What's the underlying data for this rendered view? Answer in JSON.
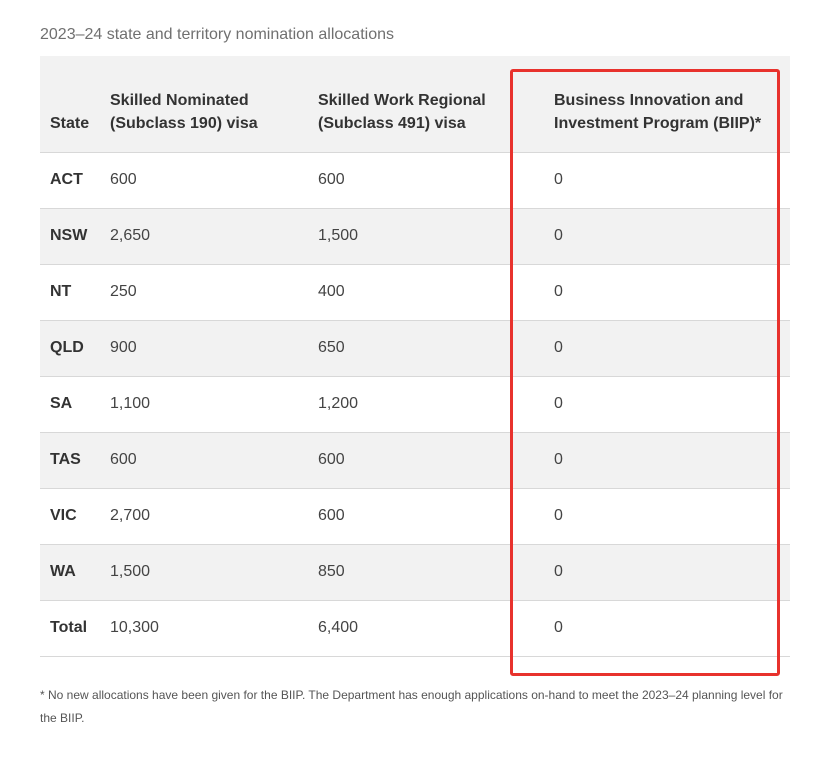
{
  "caption": "2023–24 state and territory nomination allocations",
  "table": {
    "headers": {
      "state": "State",
      "skilled_nominated": "Skilled Nominated (Subclass 190) visa",
      "skilled_work_regional": "Skilled Work Regional (Subclass 491) visa",
      "biip": "Business Innovation and Investment Program (BIIP)*"
    },
    "rows": [
      {
        "state": "ACT",
        "skilled_nominated": "600",
        "skilled_work_regional": "600",
        "biip": "0"
      },
      {
        "state": "NSW",
        "skilled_nominated": "2,650",
        "skilled_work_regional": "1,500",
        "biip": "0"
      },
      {
        "state": "NT",
        "skilled_nominated": "250",
        "skilled_work_regional": "400",
        "biip": "0"
      },
      {
        "state": "QLD",
        "skilled_nominated": "900",
        "skilled_work_regional": "650",
        "biip": "0"
      },
      {
        "state": "SA",
        "skilled_nominated": "1,100",
        "skilled_work_regional": "1,200",
        "biip": "0"
      },
      {
        "state": "TAS",
        "skilled_nominated": "600",
        "skilled_work_regional": "600",
        "biip": "0"
      },
      {
        "state": "VIC",
        "skilled_nominated": "2,700",
        "skilled_work_regional": "600",
        "biip": "0"
      },
      {
        "state": "WA",
        "skilled_nominated": "1,500",
        "skilled_work_regional": "850",
        "biip": "0"
      },
      {
        "state": "Total",
        "skilled_nominated": "10,300",
        "skilled_work_regional": "6,400",
        "biip": "0"
      }
    ]
  },
  "highlight_color": "#e8322d",
  "footnote": "* No new allocations have been given for the BIIP. The Department has enough applications on-hand to meet the 2023–24 planning level for the BIIP."
}
